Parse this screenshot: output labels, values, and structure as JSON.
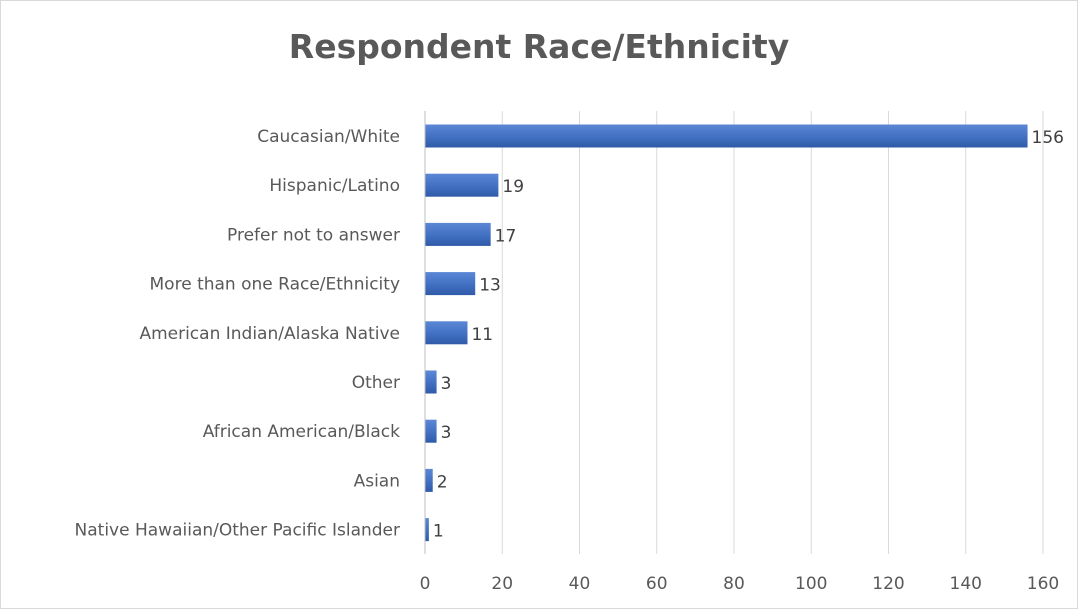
{
  "chart_data": {
    "type": "bar",
    "orientation": "horizontal",
    "title": "Respondent Race/Ethnicity",
    "categories": [
      "Caucasian/White",
      "Hispanic/Latino",
      "Prefer not to answer",
      "More than one Race/Ethnicity",
      "American Indian/Alaska Native",
      "Other",
      "African American/Black",
      "Asian",
      "Native Hawaiian/Other Pacific Islander"
    ],
    "values": [
      156,
      19,
      17,
      13,
      11,
      3,
      3,
      2,
      1
    ],
    "xlim": [
      0,
      160
    ],
    "xticks": [
      0,
      20,
      40,
      60,
      80,
      100,
      120,
      140,
      160
    ],
    "grid": "vertical",
    "data_labels": true,
    "bar_color": "#4472c4"
  }
}
